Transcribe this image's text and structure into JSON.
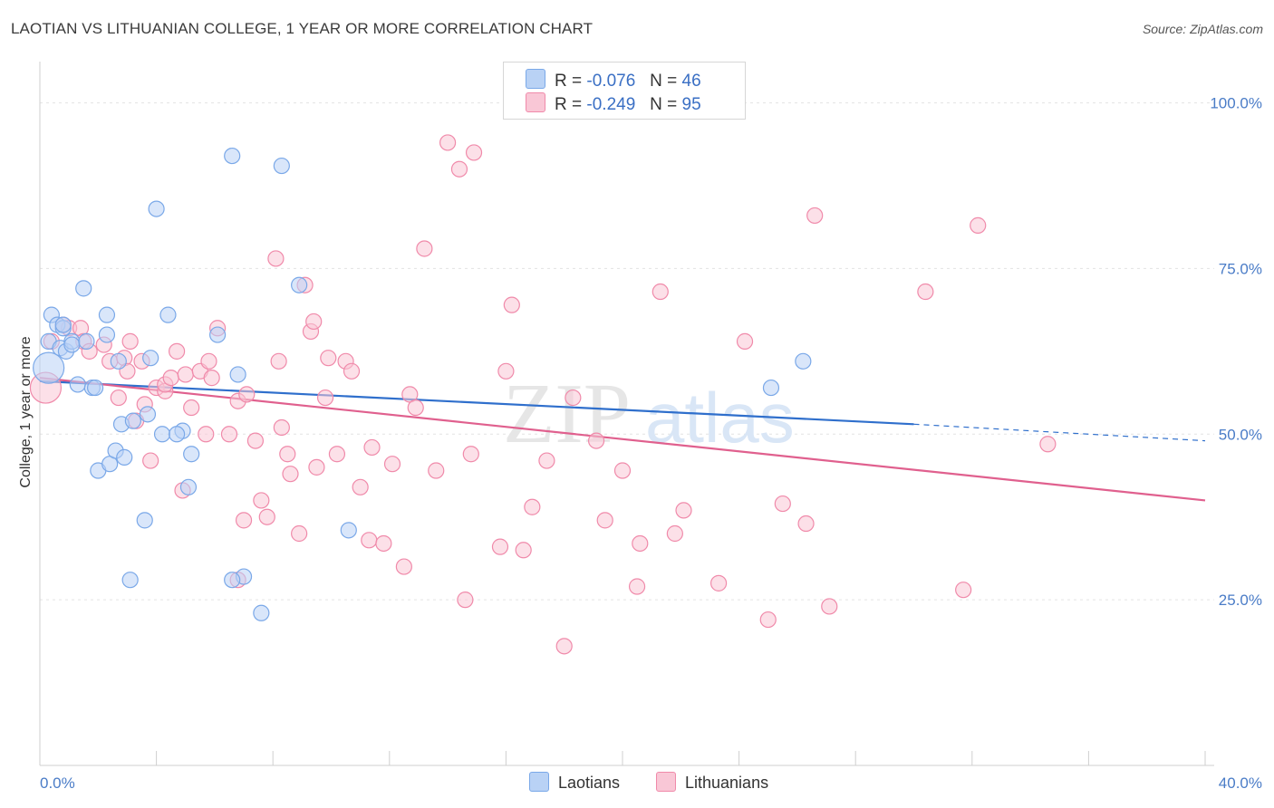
{
  "title": "LAOTIAN VS LITHUANIAN COLLEGE, 1 YEAR OR MORE CORRELATION CHART",
  "source": "Source: ZipAtlas.com",
  "watermark": {
    "zip": "ZIP",
    "atlas": "atlas"
  },
  "legend": {
    "r_label": "R =",
    "n_label": "N =",
    "series": [
      {
        "name": "Laotians",
        "r": "-0.076",
        "n": "46",
        "color": "#7aa8e8",
        "fill": "#b9d2f5"
      },
      {
        "name": "Lithuanians",
        "r": "-0.249",
        "n": "95",
        "color": "#f08aaa",
        "fill": "#f9c7d6"
      }
    ]
  },
  "chart_data": {
    "type": "scatter",
    "xlabel": "",
    "ylabel": "College, 1 year or more",
    "xlim": [
      0,
      40
    ],
    "ylim": [
      0,
      105
    ],
    "x_ticks": [
      {
        "value": 0,
        "label": "0.0%"
      },
      {
        "value": 40,
        "label": "40.0%"
      }
    ],
    "y_ticks": [
      {
        "value": 25,
        "label": "25.0%"
      },
      {
        "value": 50,
        "label": "50.0%"
      },
      {
        "value": 75,
        "label": "75.0%"
      },
      {
        "value": 100,
        "label": "100.0%"
      }
    ],
    "grid": true,
    "legend_position": "top-center",
    "series": [
      {
        "name": "Laotians",
        "color": "#7aa8e8",
        "fill": "#b9d2f5",
        "trend": {
          "x": [
            0,
            30
          ],
          "y": [
            58.0,
            51.5
          ],
          "dashed_to_x": 40,
          "dashed_to_y": 49.0,
          "color": "#2f6fcc"
        },
        "points": [
          [
            0.3,
            60.0
          ],
          [
            0.3,
            64.0
          ],
          [
            0.4,
            68.0
          ],
          [
            0.6,
            66.5
          ],
          [
            0.7,
            63.0
          ],
          [
            0.8,
            66.0
          ],
          [
            0.9,
            62.5
          ],
          [
            1.3,
            57.5
          ],
          [
            1.1,
            64.0
          ],
          [
            1.1,
            63.5
          ],
          [
            1.5,
            72.0
          ],
          [
            1.6,
            64.0
          ],
          [
            1.8,
            57.0
          ],
          [
            1.9,
            57.0
          ],
          [
            2.3,
            68.0
          ],
          [
            2.3,
            65.0
          ],
          [
            2.7,
            61.0
          ],
          [
            2.8,
            51.5
          ],
          [
            2.0,
            44.5
          ],
          [
            2.4,
            45.5
          ],
          [
            2.6,
            47.5
          ],
          [
            2.9,
            46.5
          ],
          [
            3.2,
            52.0
          ],
          [
            3.6,
            37.0
          ],
          [
            3.7,
            53.0
          ],
          [
            3.8,
            61.5
          ],
          [
            4.0,
            84.0
          ],
          [
            4.2,
            50.0
          ],
          [
            4.4,
            68.0
          ],
          [
            4.9,
            50.5
          ],
          [
            4.7,
            50.0
          ],
          [
            5.2,
            47.0
          ],
          [
            5.1,
            42.0
          ],
          [
            3.1,
            28.0
          ],
          [
            6.1,
            65.0
          ],
          [
            6.6,
            92.0
          ],
          [
            6.8,
            59.0
          ],
          [
            7.0,
            28.5
          ],
          [
            6.6,
            28.0
          ],
          [
            7.6,
            23.0
          ],
          [
            8.3,
            90.5
          ],
          [
            8.9,
            72.5
          ],
          [
            10.6,
            35.5
          ],
          [
            25.1,
            57.0
          ],
          [
            26.2,
            61.0
          ],
          [
            0.8,
            66.5
          ]
        ]
      },
      {
        "name": "Lithuanians",
        "color": "#f08aaa",
        "fill": "#f9c7d6",
        "trend": {
          "x": [
            0,
            40
          ],
          "y": [
            58.5,
            40.0
          ],
          "color": "#e0608e"
        },
        "points": [
          [
            0.2,
            57.0
          ],
          [
            0.4,
            64.0
          ],
          [
            0.8,
            66.5
          ],
          [
            1.0,
            66.0
          ],
          [
            1.4,
            66.0
          ],
          [
            1.5,
            64.0
          ],
          [
            1.7,
            62.5
          ],
          [
            2.2,
            63.5
          ],
          [
            2.4,
            61.0
          ],
          [
            2.7,
            55.5
          ],
          [
            2.9,
            61.5
          ],
          [
            3.0,
            59.5
          ],
          [
            3.1,
            64.0
          ],
          [
            3.3,
            52.0
          ],
          [
            3.5,
            61.0
          ],
          [
            3.6,
            54.5
          ],
          [
            3.8,
            46.0
          ],
          [
            4.0,
            57.0
          ],
          [
            4.3,
            56.5
          ],
          [
            4.3,
            57.5
          ],
          [
            4.5,
            58.5
          ],
          [
            4.7,
            62.5
          ],
          [
            4.9,
            41.5
          ],
          [
            5.0,
            59.0
          ],
          [
            5.2,
            54.0
          ],
          [
            5.5,
            59.5
          ],
          [
            5.7,
            50.0
          ],
          [
            5.8,
            61.0
          ],
          [
            5.9,
            58.5
          ],
          [
            6.1,
            66.0
          ],
          [
            6.5,
            50.0
          ],
          [
            6.8,
            55.0
          ],
          [
            7.0,
            37.0
          ],
          [
            7.1,
            56.0
          ],
          [
            7.4,
            49.0
          ],
          [
            7.6,
            40.0
          ],
          [
            7.8,
            37.5
          ],
          [
            8.1,
            76.5
          ],
          [
            8.2,
            61.0
          ],
          [
            8.3,
            51.0
          ],
          [
            8.5,
            47.0
          ],
          [
            8.6,
            44.0
          ],
          [
            8.9,
            35.0
          ],
          [
            9.1,
            72.5
          ],
          [
            9.3,
            65.5
          ],
          [
            9.4,
            67.0
          ],
          [
            9.5,
            45.0
          ],
          [
            9.8,
            55.5
          ],
          [
            9.9,
            61.5
          ],
          [
            10.2,
            47.0
          ],
          [
            10.5,
            61.0
          ],
          [
            10.7,
            59.5
          ],
          [
            11.0,
            42.0
          ],
          [
            11.3,
            34.0
          ],
          [
            11.4,
            48.0
          ],
          [
            11.8,
            33.5
          ],
          [
            12.1,
            45.5
          ],
          [
            12.5,
            30.0
          ],
          [
            12.7,
            56.0
          ],
          [
            12.9,
            54.0
          ],
          [
            13.2,
            78.0
          ],
          [
            13.6,
            44.5
          ],
          [
            14.0,
            94.0
          ],
          [
            14.4,
            90.0
          ],
          [
            14.6,
            25.0
          ],
          [
            14.9,
            92.5
          ],
          [
            15.8,
            33.0
          ],
          [
            16.0,
            59.5
          ],
          [
            16.2,
            69.5
          ],
          [
            16.6,
            32.5
          ],
          [
            16.9,
            39.0
          ],
          [
            17.4,
            46.0
          ],
          [
            18.0,
            18.0
          ],
          [
            18.3,
            55.5
          ],
          [
            19.1,
            49.0
          ],
          [
            19.4,
            37.0
          ],
          [
            20.0,
            44.5
          ],
          [
            20.6,
            33.5
          ],
          [
            21.3,
            71.5
          ],
          [
            21.8,
            35.0
          ],
          [
            22.1,
            38.5
          ],
          [
            23.3,
            27.5
          ],
          [
            24.2,
            64.0
          ],
          [
            25.5,
            39.5
          ],
          [
            26.3,
            36.5
          ],
          [
            26.6,
            83.0
          ],
          [
            27.1,
            24.0
          ],
          [
            30.4,
            71.5
          ],
          [
            31.7,
            26.5
          ],
          [
            32.2,
            81.5
          ],
          [
            34.6,
            48.5
          ],
          [
            6.8,
            28.0
          ],
          [
            14.8,
            47.0
          ],
          [
            20.5,
            27.0
          ],
          [
            25.0,
            22.0
          ]
        ]
      }
    ]
  }
}
